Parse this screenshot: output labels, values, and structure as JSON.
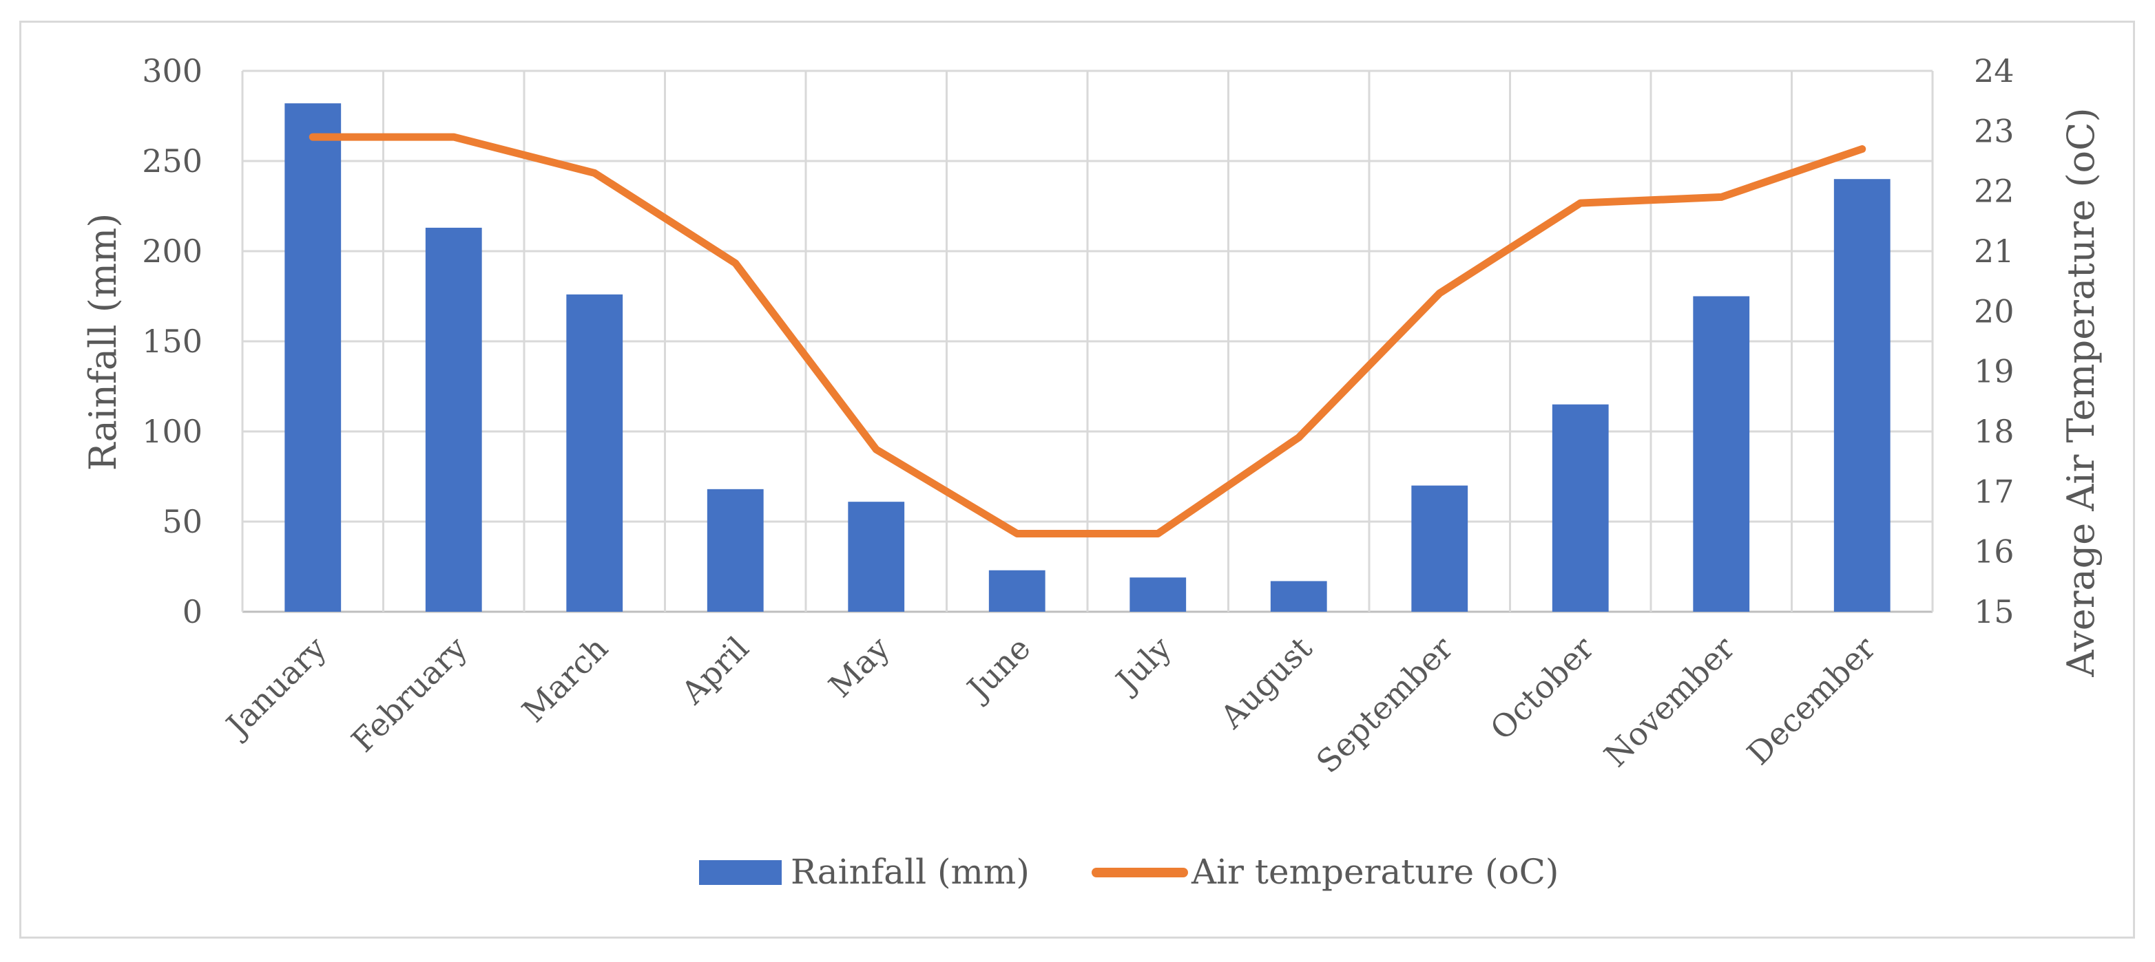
{
  "chart_data": {
    "type": "bar",
    "categories": [
      "January",
      "February",
      "March",
      "April",
      "May",
      "June",
      "July",
      "August",
      "September",
      "October",
      "November",
      "December"
    ],
    "series": [
      {
        "name": "Rainfall (mm)",
        "type": "bar",
        "axis": "left",
        "color": "#4472C4",
        "values": [
          282,
          213,
          176,
          68,
          61,
          23,
          19,
          17,
          70,
          115,
          175,
          240
        ]
      },
      {
        "name": "Air temperature (oC)",
        "type": "line",
        "axis": "right",
        "color": "#ED7D31",
        "values": [
          22.9,
          22.9,
          22.3,
          20.8,
          17.7,
          16.3,
          16.3,
          17.9,
          20.3,
          21.8,
          21.9,
          22.7
        ]
      }
    ],
    "y_left": {
      "label": "Rainfall (mm)",
      "ylim": [
        0,
        300
      ],
      "ticks": [
        0,
        50,
        100,
        150,
        200,
        250,
        300
      ]
    },
    "y_right": {
      "label": "Average Air Temperature (oC)",
      "ylim": [
        15,
        24
      ],
      "ticks": [
        15,
        16,
        17,
        18,
        19,
        20,
        21,
        22,
        23,
        24
      ]
    },
    "grid": true,
    "legend": {
      "position": "bottom"
    }
  }
}
